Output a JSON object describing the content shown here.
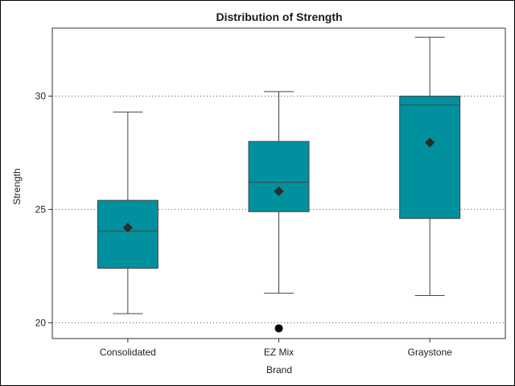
{
  "chart_data": {
    "type": "box",
    "title": "Distribution of Strength",
    "xlabel": "Brand",
    "ylabel": "Strength",
    "ylim": [
      19.3,
      33.0
    ],
    "yticks": [
      20,
      25,
      30
    ],
    "grid": "horizontal dotted at y ticks",
    "colors": {
      "box_fill": "#00909e",
      "line": "#444444",
      "mean": "#2b2b2b",
      "outlier": "#000000"
    },
    "categories": [
      "Consolidated",
      "EZ Mix",
      "Graystone"
    ],
    "boxes": [
      {
        "category": "Consolidated",
        "min": 20.4,
        "q1": 22.4,
        "median": 24.05,
        "q3": 25.4,
        "max": 29.3,
        "mean": 24.2,
        "outliers": []
      },
      {
        "category": "EZ Mix",
        "min": 21.3,
        "q1": 24.9,
        "median": 26.2,
        "q3": 28.0,
        "max": 30.2,
        "mean": 25.8,
        "outliers": [
          19.75
        ]
      },
      {
        "category": "Graystone",
        "min": 21.2,
        "q1": 24.6,
        "median": 29.6,
        "q3": 30.0,
        "max": 32.6,
        "mean": 27.95,
        "outliers": []
      }
    ]
  }
}
